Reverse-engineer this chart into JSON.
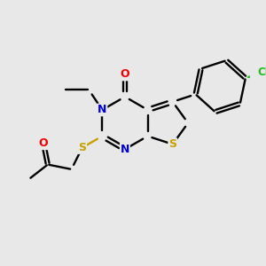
{
  "background": "#e8e8e8",
  "bc": "#000000",
  "Nc": "#0000dd",
  "Sc": "#c8a000",
  "Oc": "#ee0000",
  "Clc": "#22bb22",
  "lw": 1.7,
  "fs": 9.0,
  "xlim": [
    0,
    10
  ],
  "ylim": [
    0,
    10
  ],
  "BL": 1.0
}
